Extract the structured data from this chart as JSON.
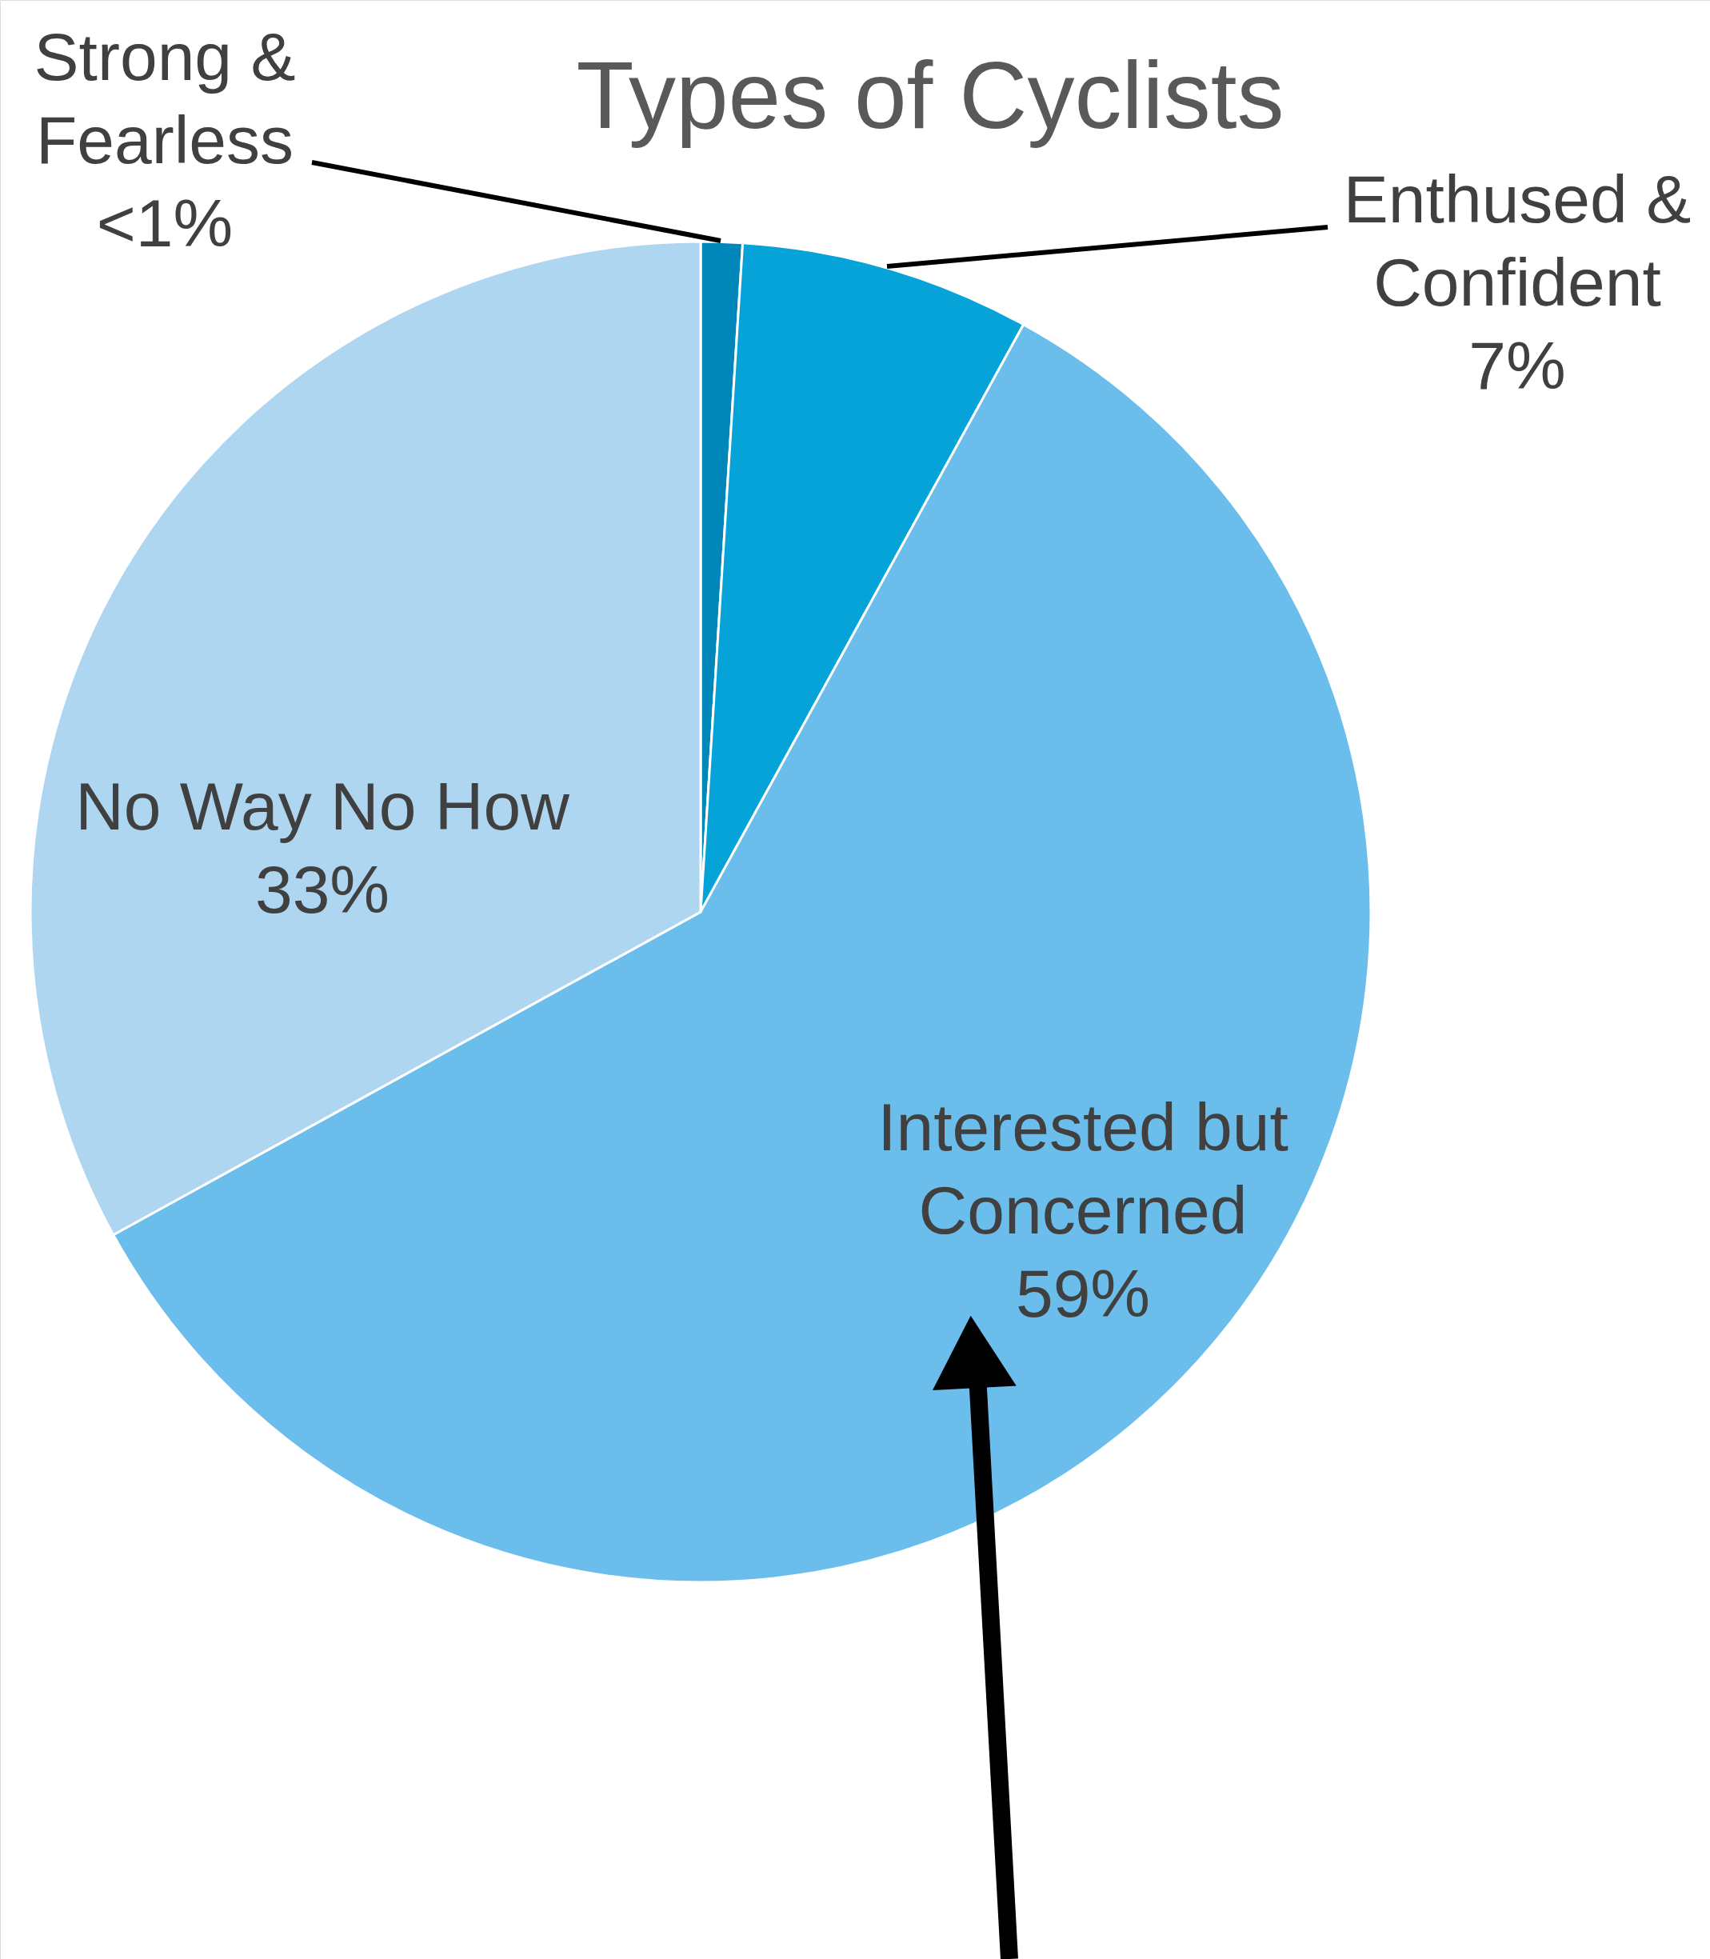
{
  "chart_data": {
    "type": "pie",
    "title": "Types of Cyclists",
    "categories": [
      "Strong &\nFearless",
      "Enthused &\nConfident",
      "Interested but\nConcerned",
      "No Way No How"
    ],
    "values": [
      1,
      7,
      59,
      33
    ],
    "value_labels": [
      "<1%",
      "7%",
      "59%",
      "33%"
    ],
    "colors": [
      "#0086b8",
      "#05a3d8",
      "#6bbdeb",
      "#aed6f1"
    ]
  }
}
